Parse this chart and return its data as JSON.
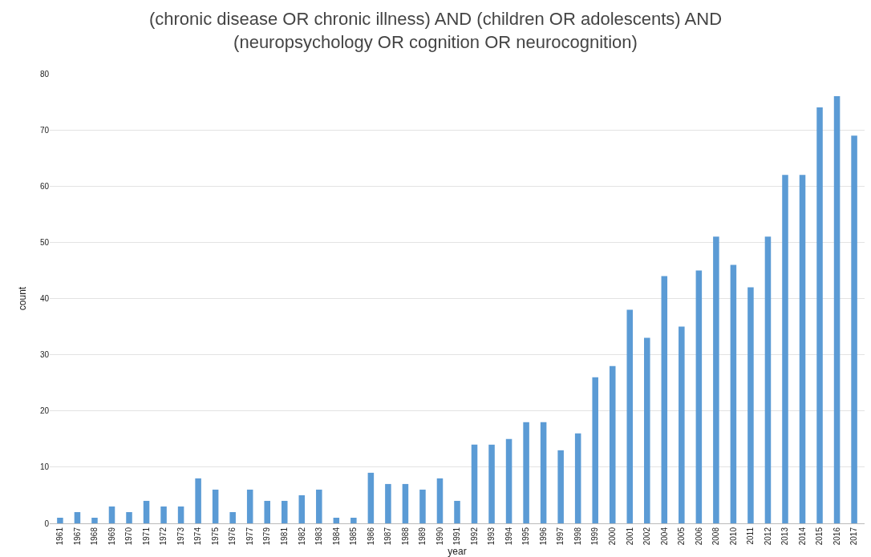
{
  "chart_data": {
    "type": "bar",
    "title": "(chronic disease OR chronic illness) AND (children OR adolescents) AND\n(neuropsychology OR cognition OR neurocognition)",
    "xlabel": "year",
    "ylabel": "count",
    "categories": [
      "1961",
      "1967",
      "1968",
      "1969",
      "1970",
      "1971",
      "1972",
      "1973",
      "1974",
      "1975",
      "1976",
      "1977",
      "1979",
      "1981",
      "1982",
      "1983",
      "1984",
      "1985",
      "1986",
      "1987",
      "1988",
      "1989",
      "1990",
      "1991",
      "1992",
      "1993",
      "1994",
      "1995",
      "1996",
      "1997",
      "1998",
      "1999",
      "2000",
      "2001",
      "2002",
      "2004",
      "2005",
      "2006",
      "2008",
      "2010",
      "2011",
      "2012",
      "2013",
      "2014",
      "2015",
      "2016",
      "2017"
    ],
    "values": [
      1,
      2,
      1,
      3,
      2,
      4,
      3,
      3,
      8,
      6,
      2,
      6,
      4,
      4,
      5,
      6,
      1,
      1,
      9,
      7,
      7,
      6,
      8,
      4,
      14,
      14,
      15,
      18,
      18,
      13,
      16,
      26,
      28,
      38,
      33,
      44,
      35,
      45,
      51,
      46,
      42,
      51,
      62,
      62,
      74,
      76,
      69
    ],
    "color": "#5b9bd5",
    "ylim": [
      0,
      80
    ],
    "yticks": [
      0,
      10,
      20,
      30,
      40,
      50,
      60,
      70,
      80
    ],
    "grid": "y"
  }
}
